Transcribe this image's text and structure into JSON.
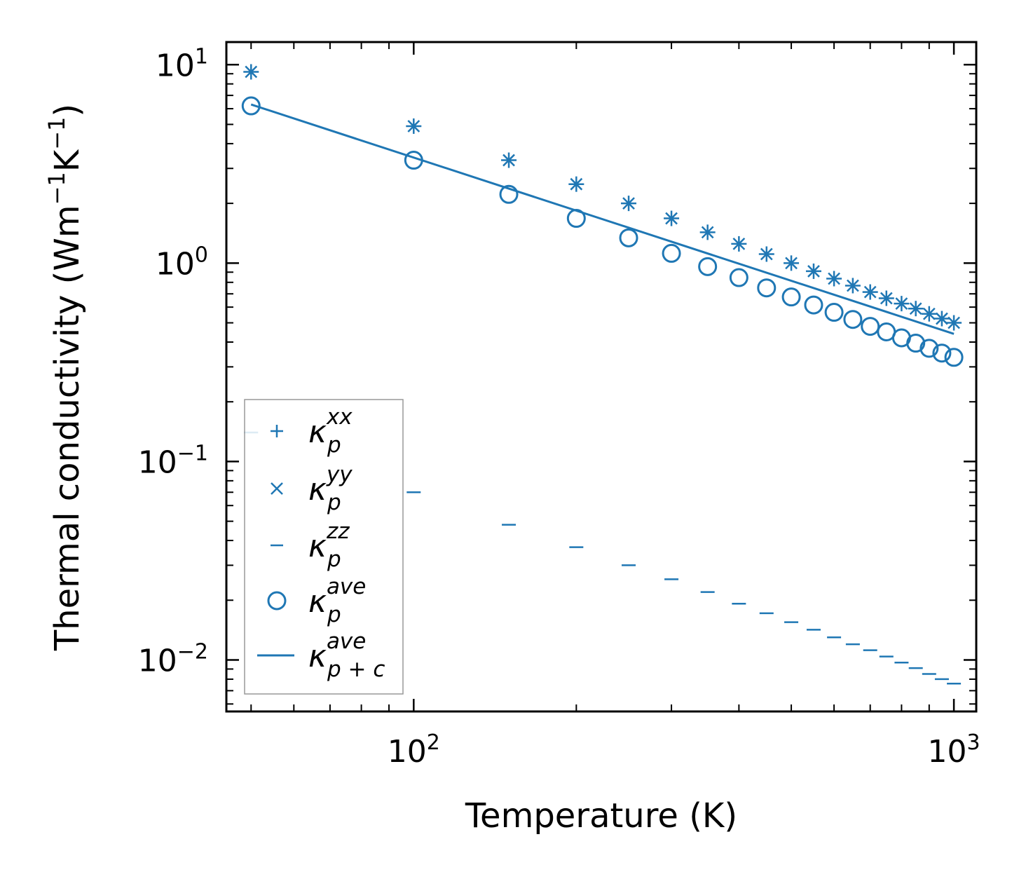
{
  "chart_data": {
    "type": "scatter",
    "xscale": "log",
    "yscale": "log",
    "xlabel": "Temperature (K)",
    "ylabel": {
      "text": "Thermal conductivity (Wm",
      "sup1": "−1",
      "mid": "K",
      "sup2": "−1",
      "close": ")"
    },
    "xlim": [
      45,
      1100
    ],
    "ylim": [
      0.0055,
      13
    ],
    "xticks": [
      {
        "value": 100,
        "base": "10",
        "exp": "2"
      },
      {
        "value": 1000,
        "base": "10",
        "exp": "3"
      }
    ],
    "yticks": [
      {
        "value": 10,
        "base": "10",
        "exp": "1"
      },
      {
        "value": 1,
        "base": "10",
        "exp": "0"
      },
      {
        "value": 0.1,
        "base": "10",
        "exp": "−1"
      },
      {
        "value": 0.01,
        "base": "10",
        "exp": "−2"
      }
    ],
    "x": [
      50,
      100,
      150,
      200,
      250,
      300,
      350,
      400,
      450,
      500,
      550,
      600,
      650,
      700,
      750,
      800,
      850,
      900,
      950,
      1000
    ],
    "series": [
      {
        "name": "kappa_p_xx",
        "marker": "plus",
        "label": {
          "main": "κ",
          "sub": "p",
          "sup": "xx"
        },
        "values": [
          9.2,
          4.9,
          3.3,
          2.5,
          2.0,
          1.68,
          1.43,
          1.25,
          1.11,
          1.0,
          0.91,
          0.835,
          0.77,
          0.715,
          0.665,
          0.625,
          0.59,
          0.555,
          0.525,
          0.5
        ]
      },
      {
        "name": "kappa_p_yy",
        "marker": "x",
        "label": {
          "main": "κ",
          "sub": "p",
          "sup": "yy"
        },
        "values": [
          9.2,
          4.9,
          3.3,
          2.5,
          2.0,
          1.68,
          1.43,
          1.25,
          1.11,
          1.0,
          0.91,
          0.835,
          0.77,
          0.715,
          0.665,
          0.625,
          0.59,
          0.555,
          0.525,
          0.5
        ]
      },
      {
        "name": "kappa_p_zz",
        "marker": "hline",
        "label": {
          "main": "κ",
          "sub": "p",
          "sup": "zz"
        },
        "values": [
          0.14,
          0.07,
          0.048,
          0.037,
          0.03,
          0.0255,
          0.022,
          0.0192,
          0.0172,
          0.0155,
          0.0142,
          0.013,
          0.012,
          0.0112,
          0.0104,
          0.0097,
          0.0091,
          0.0085,
          0.008,
          0.0076
        ]
      },
      {
        "name": "kappa_p_ave",
        "marker": "circle",
        "label": {
          "main": "κ",
          "sub": "p",
          "sup": "ave"
        },
        "values": [
          6.2,
          3.3,
          2.22,
          1.68,
          1.34,
          1.12,
          0.96,
          0.845,
          0.75,
          0.675,
          0.615,
          0.565,
          0.52,
          0.48,
          0.45,
          0.42,
          0.395,
          0.372,
          0.352,
          0.335
        ]
      },
      {
        "name": "kappa_pc_ave",
        "marker": "line",
        "label": {
          "main": "κ",
          "sub": "p + c",
          "sup": "ave"
        },
        "values": [
          6.3,
          0.44
        ],
        "x_endpoints": [
          50,
          1000
        ]
      }
    ],
    "legend": "lower-left",
    "color": "#1f77b4"
  }
}
